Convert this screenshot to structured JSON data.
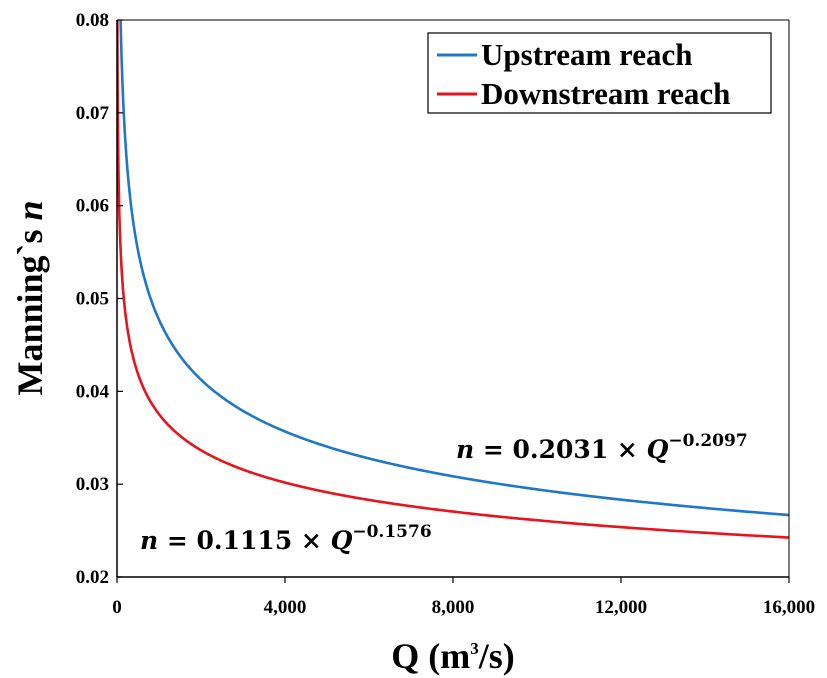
{
  "chart_data": {
    "type": "line",
    "title": "",
    "xlabel": {
      "main": "Q (m",
      "sup": "3",
      "tail": "/s)"
    },
    "ylabel": {
      "main": "Manning`s ",
      "italic": "n"
    },
    "xlim": [
      0,
      16000
    ],
    "ylim": [
      0.02,
      0.08
    ],
    "xticks": [
      0,
      4000,
      8000,
      12000,
      16000
    ],
    "xtick_labels": [
      "0",
      "4,000",
      "8,000",
      "12,000",
      "16,000"
    ],
    "yticks": [
      0.02,
      0.03,
      0.04,
      0.05,
      0.06,
      0.07,
      0.08
    ],
    "ytick_labels": [
      "0.02",
      "0.03",
      "0.04",
      "0.05",
      "0.06",
      "0.07",
      "0.08"
    ],
    "grid": false,
    "legend_position": "top-right",
    "series": [
      {
        "name": "Upstream reach",
        "color": "#1f77c8",
        "formula": {
          "coef": 0.2031,
          "exp": -0.2097
        },
        "equation": {
          "lhs": "n",
          "eq": " = 0.2031 × ",
          "var": "Q",
          "sup": "−0.2097"
        },
        "x": [
          100,
          200,
          500,
          1000,
          2000,
          4000,
          8000,
          12000,
          16000
        ],
        "y": [
          0.0773,
          0.067,
          0.0554,
          0.0479,
          0.0414,
          0.0359,
          0.031,
          0.0285,
          0.0268
        ]
      },
      {
        "name": "Downstream reach",
        "color": "#e8141c",
        "formula": {
          "coef": 0.1115,
          "exp": -0.1576
        },
        "equation": {
          "lhs": "n",
          "eq": " = 0.1115 × ",
          "var": "Q",
          "sup": "−0.1576"
        },
        "x": [
          100,
          200,
          500,
          1000,
          2000,
          4000,
          8000,
          12000,
          16000
        ],
        "y": [
          0.0538,
          0.0483,
          0.0419,
          0.0377,
          0.0337,
          0.0302,
          0.027,
          0.0253,
          0.0243
        ]
      }
    ]
  }
}
